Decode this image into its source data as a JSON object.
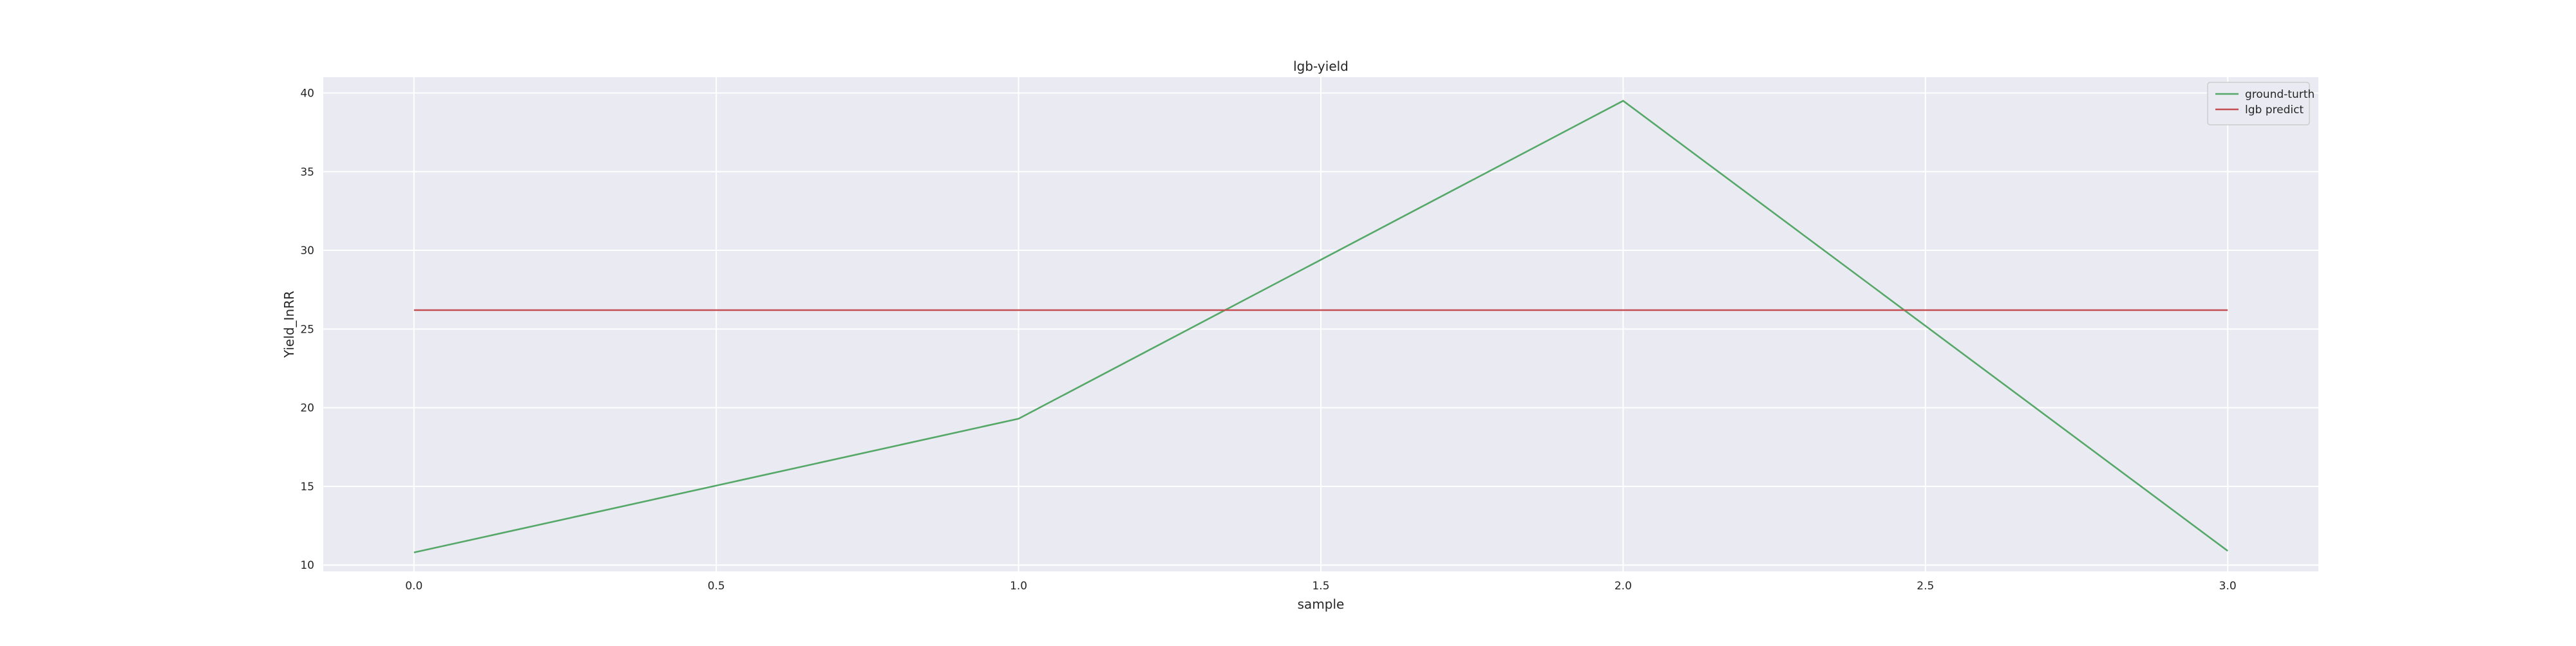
{
  "chart_data": {
    "type": "line",
    "title": "lgb-yield",
    "xlabel": "sample",
    "ylabel": "Yield_InRR",
    "xlim": [
      -0.15,
      3.15
    ],
    "ylim": [
      9.6,
      41.0
    ],
    "xticks": [
      0.0,
      0.5,
      1.0,
      1.5,
      2.0,
      2.5,
      3.0
    ],
    "xtick_labels": [
      "0.0",
      "0.5",
      "1.0",
      "1.5",
      "2.0",
      "2.5",
      "3.0"
    ],
    "yticks": [
      10,
      15,
      20,
      25,
      30,
      35,
      40
    ],
    "ytick_labels": [
      "10",
      "15",
      "20",
      "25",
      "30",
      "35",
      "40"
    ],
    "grid": true,
    "legend_position": "top-right",
    "background_color": "#eaeaf2",
    "grid_color": "#ffffff",
    "series": [
      {
        "name": "ground-turth",
        "color": "#55a868",
        "x": [
          0,
          1,
          2,
          3
        ],
        "y": [
          10.8,
          19.3,
          39.5,
          10.9
        ]
      },
      {
        "name": "lgb predict",
        "color": "#c44e52",
        "x": [
          0,
          1,
          2,
          3
        ],
        "y": [
          26.2,
          26.2,
          26.2,
          26.2
        ]
      }
    ]
  }
}
